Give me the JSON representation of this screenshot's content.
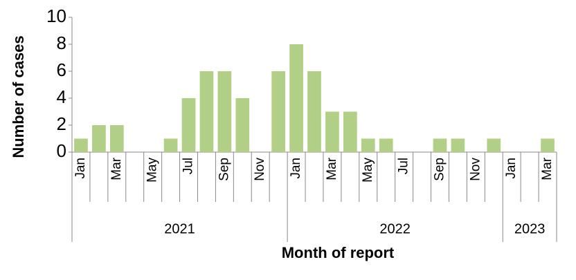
{
  "chart_data": {
    "type": "bar",
    "x_label": "Month of report",
    "y_label": "Number of cases",
    "categories": [
      "Jan",
      null,
      "Mar",
      null,
      "May",
      null,
      "Jul",
      null,
      "Sep",
      null,
      "Nov",
      null,
      "Jan",
      null,
      "Mar",
      null,
      "May",
      null,
      "Jul",
      null,
      "Sep",
      null,
      "Nov",
      null,
      "Jan",
      null,
      "Mar"
    ],
    "years": [
      "2021",
      "2022",
      "2023"
    ],
    "values": [
      1,
      2,
      2,
      0,
      0,
      1,
      4,
      6,
      6,
      4,
      0,
      6,
      8,
      6,
      3,
      3,
      1,
      1,
      0,
      0,
      1,
      1,
      0,
      1,
      0,
      0,
      1
    ],
    "color": "#b1cf86",
    "ylim": [
      0,
      10
    ],
    "yticks": [
      0,
      2,
      4,
      6,
      8,
      10
    ],
    "grid": false
  }
}
